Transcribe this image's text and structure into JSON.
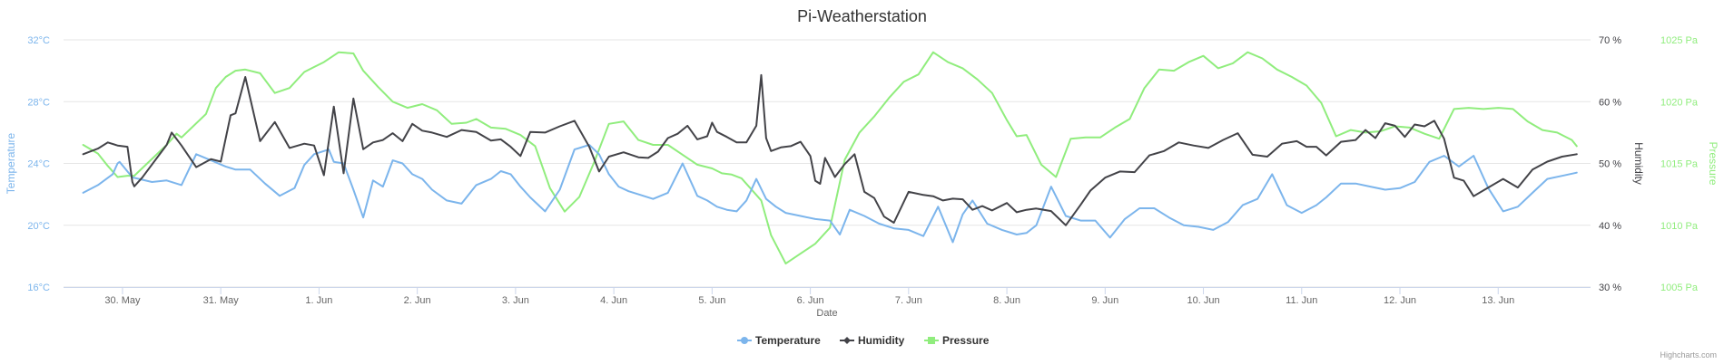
{
  "chart_data": {
    "type": "line",
    "title": "Pi-Weatherstation",
    "xlabel": "Date",
    "x_tick_labels": [
      "30. May",
      "31. May",
      "1. Jun",
      "2. Jun",
      "3. Jun",
      "4. Jun",
      "5. Jun",
      "6. Jun",
      "7. Jun",
      "8. Jun",
      "9. Jun",
      "10. Jun",
      "11. Jun",
      "12. Jun",
      "13. Jun"
    ],
    "x_range_days": [
      29.4,
      44.94
    ],
    "grid": "horizontal",
    "legend_position": "bottom-center",
    "credits": "Highcharts.com",
    "axes": [
      {
        "id": "temperature",
        "title": "Temperature",
        "side": "left",
        "color": "#7cb5ec",
        "tick_labels": [
          "16°C",
          "20°C",
          "24°C",
          "28°C",
          "32°C"
        ],
        "range": [
          16,
          32
        ]
      },
      {
        "id": "humidity",
        "title": "Humidity",
        "side": "right",
        "color": "#434348",
        "tick_labels": [
          "30 %",
          "40 %",
          "50 %",
          "60 %",
          "70 %"
        ],
        "range": [
          30,
          70
        ]
      },
      {
        "id": "pressure",
        "title": "Pressure",
        "side": "right",
        "color": "#90ed7d",
        "tick_labels": [
          "1005 Pa",
          "1010 Pa",
          "1015 Pa",
          "1020 Pa",
          "1025 Pa"
        ],
        "range": [
          1005,
          1025
        ]
      }
    ],
    "series": [
      {
        "name": "Temperature",
        "axis": "temperature",
        "color": "#7cb5ec",
        "x": [
          29.6,
          29.75,
          29.9,
          29.95,
          29.97,
          30.1,
          30.3,
          30.45,
          30.6,
          30.75,
          30.9,
          31.05,
          31.15,
          31.3,
          31.45,
          31.6,
          31.75,
          31.85,
          31.95,
          32.1,
          32.15,
          32.25,
          32.35,
          32.45,
          32.55,
          32.65,
          32.75,
          32.85,
          32.95,
          33.05,
          33.15,
          33.3,
          33.45,
          33.6,
          33.75,
          33.85,
          33.95,
          34.05,
          34.15,
          34.3,
          34.45,
          34.6,
          34.75,
          34.85,
          34.95,
          35.05,
          35.15,
          35.25,
          35.4,
          35.55,
          35.7,
          35.85,
          35.95,
          36.05,
          36.15,
          36.25,
          36.35,
          36.45,
          36.55,
          36.65,
          36.75,
          36.9,
          37.05,
          37.2,
          37.3,
          37.4,
          37.55,
          37.7,
          37.85,
          38.0,
          38.15,
          38.3,
          38.45,
          38.55,
          38.65,
          38.8,
          38.95,
          39.1,
          39.2,
          39.3,
          39.45,
          39.6,
          39.75,
          39.9,
          40.05,
          40.2,
          40.35,
          40.5,
          40.65,
          40.8,
          40.95,
          41.1,
          41.25,
          41.4,
          41.55,
          41.7,
          41.85,
          42.0,
          42.15,
          42.25,
          42.4,
          42.55,
          42.7,
          42.85,
          43.0,
          43.15,
          43.3,
          43.45,
          43.6,
          43.75,
          43.9,
          44.05,
          44.2,
          44.35,
          44.5,
          44.65,
          44.8
        ],
        "values": [
          22.1,
          22.6,
          23.3,
          24.0,
          24.1,
          23.1,
          22.8,
          22.9,
          22.6,
          24.6,
          24.2,
          23.8,
          23.6,
          23.6,
          22.7,
          21.9,
          22.4,
          23.9,
          24.6,
          24.9,
          24.1,
          24.0,
          22.3,
          20.5,
          22.9,
          22.5,
          24.2,
          24.0,
          23.3,
          23.0,
          22.3,
          21.6,
          21.4,
          22.6,
          23.0,
          23.5,
          23.3,
          22.5,
          21.8,
          20.9,
          22.3,
          24.9,
          25.2,
          24.6,
          23.3,
          22.5,
          22.2,
          22.0,
          21.7,
          22.1,
          24.0,
          21.9,
          21.6,
          21.2,
          21.0,
          20.9,
          21.6,
          23.0,
          21.7,
          21.2,
          20.8,
          20.6,
          20.4,
          20.3,
          19.4,
          21.0,
          20.6,
          20.1,
          19.8,
          19.7,
          19.3,
          21.2,
          18.9,
          20.7,
          21.6,
          20.1,
          19.7,
          19.4,
          19.5,
          20.0,
          22.5,
          20.6,
          20.3,
          20.3,
          19.2,
          20.4,
          21.1,
          21.1,
          20.5,
          20.0,
          19.9,
          19.7,
          20.2,
          21.3,
          21.7,
          23.3,
          21.3,
          20.8,
          21.3,
          21.8,
          22.7,
          22.7,
          22.5,
          22.3,
          22.4,
          22.8,
          24.1,
          24.5,
          23.8,
          24.5,
          22.4,
          20.9,
          21.2,
          22.1,
          23.0,
          23.2,
          23.4
        ]
      },
      {
        "name": "Humidity",
        "axis": "humidity",
        "color": "#434348",
        "x": [
          29.6,
          29.75,
          29.85,
          29.95,
          30.05,
          30.1,
          30.12,
          30.2,
          30.45,
          30.5,
          30.6,
          30.75,
          30.9,
          31.0,
          31.1,
          31.15,
          31.25,
          31.4,
          31.55,
          31.7,
          31.85,
          31.95,
          32.05,
          32.15,
          32.25,
          32.35,
          32.45,
          32.55,
          32.65,
          32.75,
          32.85,
          32.95,
          33.05,
          33.15,
          33.3,
          33.45,
          33.6,
          33.75,
          33.85,
          33.95,
          34.05,
          34.15,
          34.3,
          34.45,
          34.6,
          34.75,
          34.85,
          34.95,
          35.1,
          35.25,
          35.35,
          35.45,
          35.55,
          35.65,
          35.75,
          35.85,
          35.95,
          36.0,
          36.05,
          36.15,
          36.25,
          36.35,
          36.45,
          36.5,
          36.55,
          36.6,
          36.7,
          36.8,
          36.9,
          37.0,
          37.05,
          37.1,
          37.15,
          37.25,
          37.35,
          37.45,
          37.55,
          37.65,
          37.75,
          37.85,
          38.0,
          38.15,
          38.25,
          38.35,
          38.45,
          38.55,
          38.65,
          38.75,
          38.85,
          39.0,
          39.1,
          39.2,
          39.3,
          39.45,
          39.6,
          39.75,
          39.85,
          40.0,
          40.15,
          40.3,
          40.45,
          40.6,
          40.75,
          40.9,
          41.05,
          41.2,
          41.35,
          41.5,
          41.65,
          41.8,
          41.95,
          42.05,
          42.15,
          42.25,
          42.4,
          42.55,
          42.65,
          42.75,
          42.85,
          42.95,
          43.05,
          43.15,
          43.25,
          43.35,
          43.45,
          43.55,
          43.65,
          43.75,
          43.9,
          44.05,
          44.2,
          44.35,
          44.5,
          44.65,
          44.8
        ],
        "values": [
          51.5,
          52.4,
          53.4,
          52.9,
          52.7,
          47.0,
          46.3,
          47.7,
          53.0,
          55.0,
          52.9,
          49.4,
          50.7,
          50.3,
          57.8,
          58.1,
          64.0,
          53.6,
          56.7,
          52.5,
          53.2,
          52.9,
          48.1,
          59.2,
          48.4,
          60.5,
          52.3,
          53.4,
          53.8,
          54.9,
          53.6,
          56.4,
          55.3,
          55.0,
          54.3,
          55.4,
          55.1,
          53.7,
          53.9,
          52.7,
          51.2,
          55.1,
          55.0,
          56.0,
          56.9,
          52.7,
          48.7,
          51.1,
          51.8,
          51.0,
          50.9,
          51.9,
          54.1,
          54.8,
          56.1,
          53.9,
          54.4,
          56.6,
          55.1,
          54.3,
          53.4,
          53.4,
          56.1,
          64.3,
          54.1,
          52.0,
          52.6,
          52.8,
          53.5,
          51.2,
          47.2,
          46.7,
          50.9,
          47.8,
          49.9,
          51.5,
          45.4,
          44.4,
          41.4,
          40.4,
          45.4,
          44.9,
          44.7,
          44.0,
          44.3,
          44.2,
          42.5,
          43.1,
          42.4,
          43.6,
          42.1,
          42.5,
          42.7,
          42.3,
          40.0,
          43.3,
          45.6,
          47.7,
          48.7,
          48.6,
          51.3,
          52.0,
          53.4,
          52.9,
          52.5,
          53.8,
          54.9,
          51.4,
          51.1,
          53.2,
          53.6,
          52.7,
          52.7,
          51.3,
          53.5,
          53.8,
          55.4,
          54.1,
          56.5,
          56.1,
          54.3,
          56.3,
          56.0,
          56.9,
          54.0,
          47.7,
          47.2,
          44.7,
          46.1,
          47.5,
          46.1,
          49.0,
          50.3,
          51.1,
          51.5
        ]
      },
      {
        "name": "Pressure",
        "axis": "pressure",
        "color": "#90ed7d",
        "x": [
          29.6,
          29.75,
          29.85,
          29.95,
          30.05,
          30.12,
          30.45,
          30.55,
          30.6,
          30.85,
          30.95,
          31.05,
          31.15,
          31.25,
          31.4,
          31.55,
          31.7,
          31.85,
          31.95,
          32.05,
          32.2,
          32.35,
          32.45,
          32.6,
          32.75,
          32.9,
          33.05,
          33.2,
          33.35,
          33.5,
          33.6,
          33.75,
          33.9,
          34.05,
          34.2,
          34.35,
          34.5,
          34.65,
          34.8,
          34.95,
          35.1,
          35.25,
          35.4,
          35.55,
          35.7,
          35.85,
          36.0,
          36.1,
          36.2,
          36.3,
          36.4,
          36.5,
          36.6,
          36.75,
          36.9,
          37.05,
          37.2,
          37.35,
          37.5,
          37.65,
          37.8,
          37.95,
          38.1,
          38.25,
          38.4,
          38.55,
          38.7,
          38.85,
          39.0,
          39.1,
          39.2,
          39.35,
          39.5,
          39.65,
          39.8,
          39.95,
          40.1,
          40.25,
          40.4,
          40.55,
          40.7,
          40.85,
          41.0,
          41.15,
          41.3,
          41.45,
          41.6,
          41.75,
          41.9,
          42.05,
          42.2,
          42.35,
          42.5,
          42.65,
          42.8,
          42.95,
          43.1,
          43.25,
          43.4,
          43.55,
          43.7,
          43.85,
          44.0,
          44.15,
          44.3,
          44.45,
          44.6,
          44.75,
          44.8
        ],
        "values": [
          1016.5,
          1015.8,
          1014.8,
          1013.9,
          1014.0,
          1014.0,
          1016.5,
          1017.4,
          1017.1,
          1019.0,
          1021.1,
          1022.0,
          1022.5,
          1022.6,
          1022.3,
          1020.7,
          1021.1,
          1022.4,
          1022.8,
          1023.2,
          1024.0,
          1023.9,
          1022.5,
          1021.2,
          1020.0,
          1019.5,
          1019.8,
          1019.3,
          1018.2,
          1018.3,
          1018.6,
          1017.9,
          1017.8,
          1017.3,
          1016.4,
          1013.0,
          1011.1,
          1012.3,
          1015.1,
          1018.2,
          1018.4,
          1016.9,
          1016.5,
          1016.5,
          1015.7,
          1014.9,
          1014.6,
          1014.2,
          1014.1,
          1013.8,
          1012.9,
          1012.0,
          1009.2,
          1006.9,
          1007.7,
          1008.5,
          1009.8,
          1015.3,
          1017.5,
          1018.8,
          1020.3,
          1021.6,
          1022.2,
          1024.0,
          1023.2,
          1022.7,
          1021.8,
          1020.7,
          1018.5,
          1017.2,
          1017.3,
          1014.9,
          1013.9,
          1017.0,
          1017.1,
          1017.1,
          1017.9,
          1018.6,
          1021.1,
          1022.6,
          1022.5,
          1023.2,
          1023.7,
          1022.7,
          1023.1,
          1024.0,
          1023.5,
          1022.6,
          1022.0,
          1021.3,
          1019.9,
          1017.2,
          1017.7,
          1017.5,
          1017.6,
          1018.0,
          1017.9,
          1017.4,
          1017.0,
          1019.4,
          1019.5,
          1019.4,
          1019.5,
          1019.4,
          1018.4,
          1017.7,
          1017.5,
          1016.9,
          1016.4
        ]
      }
    ]
  }
}
